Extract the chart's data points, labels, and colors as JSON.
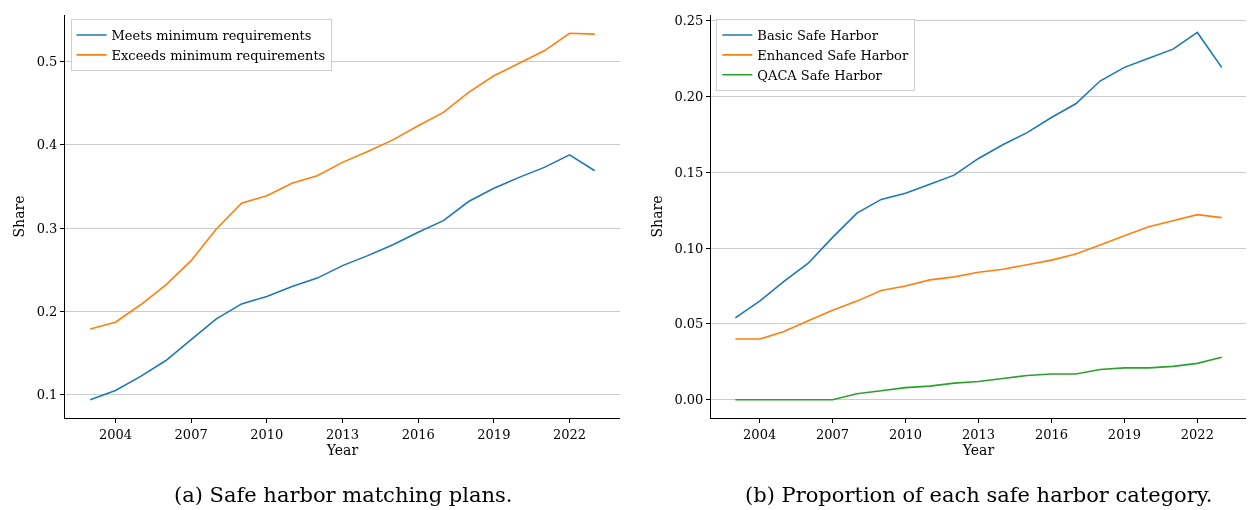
{
  "chart_data": [
    {
      "type": "line",
      "xlabel": "Year",
      "ylabel": "Share",
      "annotations": [
        "(a) Safe harbor matching plans."
      ],
      "x": [
        2003,
        2004,
        2005,
        2006,
        2007,
        2008,
        2009,
        2010,
        2011,
        2012,
        2013,
        2014,
        2015,
        2016,
        2017,
        2018,
        2019,
        2020,
        2021,
        2022,
        2023
      ],
      "series": [
        {
          "name": "Meets minimum requirements",
          "color": "#1f77b4",
          "values": [
            0.094,
            0.105,
            0.122,
            0.141,
            0.166,
            0.191,
            0.209,
            0.218,
            0.23,
            0.24,
            0.255,
            0.267,
            0.28,
            0.295,
            0.309,
            0.332,
            0.348,
            0.361,
            0.373,
            0.388,
            0.369
          ]
        },
        {
          "name": "Exceeds minimum requirements",
          "color": "#ff7f0e",
          "values": [
            0.179,
            0.187,
            0.208,
            0.232,
            0.261,
            0.299,
            0.33,
            0.339,
            0.354,
            0.363,
            0.379,
            0.392,
            0.406,
            0.423,
            0.439,
            0.463,
            0.483,
            0.498,
            0.513,
            0.534,
            0.533
          ]
        }
      ],
      "xlim": [
        2002,
        2024
      ],
      "xticks": [
        2004,
        2007,
        2010,
        2013,
        2016,
        2019,
        2022
      ],
      "ylim": [
        0.072,
        0.556
      ],
      "yticks": [
        0.1,
        0.2,
        0.3,
        0.4,
        0.5
      ],
      "grid": "y",
      "legend": "top left"
    },
    {
      "type": "line",
      "xlabel": "Year",
      "ylabel": "Share",
      "annotations": [
        "(b) Proportion of each safe harbor category."
      ],
      "x": [
        2003,
        2004,
        2005,
        2006,
        2007,
        2008,
        2009,
        2010,
        2011,
        2012,
        2013,
        2014,
        2015,
        2016,
        2017,
        2018,
        2019,
        2020,
        2021,
        2022,
        2023
      ],
      "series": [
        {
          "name": "Basic Safe Harbor",
          "color": "#1f77b4",
          "values": [
            0.054,
            0.065,
            0.078,
            0.09,
            0.107,
            0.123,
            0.132,
            0.136,
            0.142,
            0.148,
            0.159,
            0.168,
            0.176,
            0.186,
            0.195,
            0.21,
            0.219,
            0.225,
            0.231,
            0.242,
            0.219
          ]
        },
        {
          "name": "Enhanced Safe Harbor",
          "color": "#ff7f0e",
          "values": [
            0.04,
            0.04,
            0.045,
            0.052,
            0.059,
            0.065,
            0.072,
            0.075,
            0.079,
            0.081,
            0.084,
            0.086,
            0.089,
            0.092,
            0.096,
            0.102,
            0.108,
            0.114,
            0.118,
            0.122,
            0.12
          ]
        },
        {
          "name": "QACA Safe Harbor",
          "color": "#2ca02c",
          "values": [
            0,
            0,
            0,
            0,
            0,
            0.004,
            0.006,
            0.008,
            0.009,
            0.011,
            0.012,
            0.014,
            0.016,
            0.017,
            0.017,
            0.02,
            0.021,
            0.021,
            0.022,
            0.024,
            0.028
          ]
        }
      ],
      "xlim": [
        2002,
        2024
      ],
      "xticks": [
        2004,
        2007,
        2010,
        2013,
        2016,
        2019,
        2022
      ],
      "ylim": [
        -0.012,
        0.2535
      ],
      "yticks": [
        {
          "value": 0,
          "label": "0.00"
        },
        {
          "value": 0.05,
          "label": "0.05"
        },
        {
          "value": 0.1,
          "label": "0.10"
        },
        {
          "value": 0.15,
          "label": "0.15"
        },
        {
          "value": 0.2,
          "label": "0.20"
        },
        {
          "value": 0.25,
          "label": "0.25"
        }
      ],
      "grid": "y",
      "legend": "top left"
    }
  ]
}
